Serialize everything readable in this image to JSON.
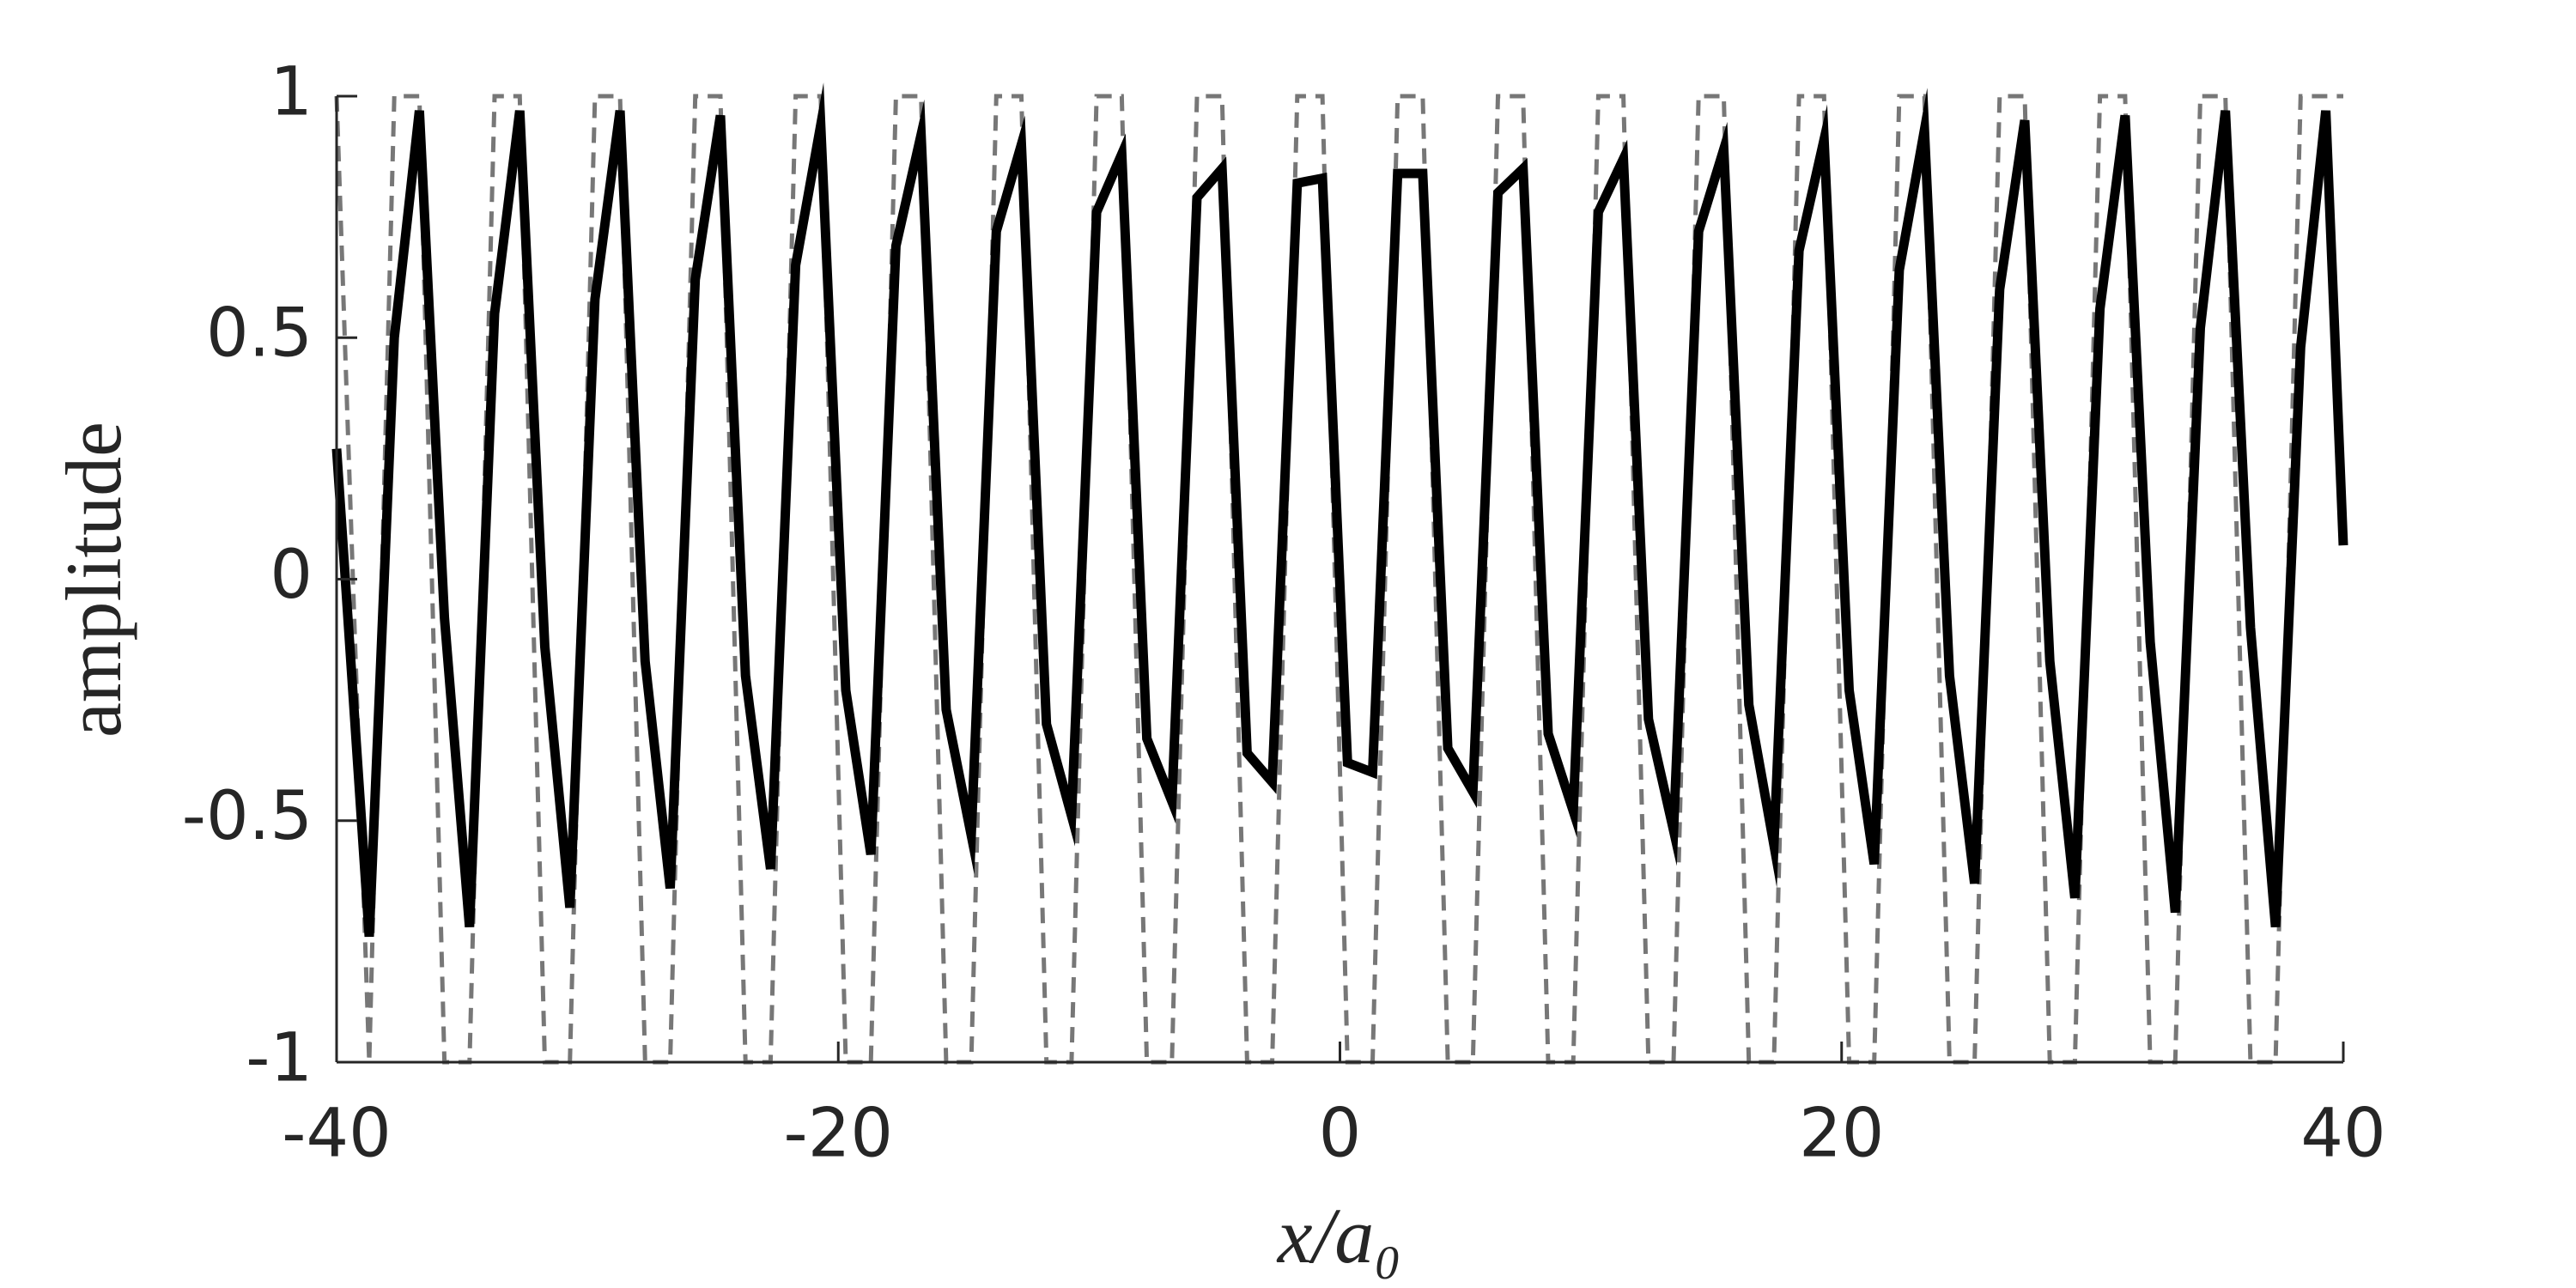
{
  "chart_data": {
    "type": "line",
    "xlabel": "x/a₀",
    "ylabel": "amplitude",
    "x": [
      -40,
      -38.7,
      -37.7,
      -36.7,
      -35.7,
      -34.7,
      -33.7,
      -32.7,
      -31.7,
      -30.7,
      -29.7,
      -28.7,
      -27.7,
      -26.7,
      -25.7,
      -24.7,
      -23.7,
      -22.7,
      -21.7,
      -20.7,
      -19.7,
      -18.7,
      -17.7,
      -16.7,
      -15.7,
      -14.7,
      -13.7,
      -12.7,
      -11.7,
      -10.7,
      -9.7,
      -8.7,
      -7.7,
      -6.7,
      -5.7,
      -4.7,
      -3.7,
      -2.7,
      -1.7,
      -0.7,
      0.3,
      1.3,
      2.3,
      3.3,
      4.3,
      5.3,
      6.3,
      7.3,
      8.3,
      9.3,
      10.3,
      11.3,
      12.3,
      13.3,
      14.3,
      15.3,
      16.3,
      17.3,
      18.3,
      19.3,
      20.3,
      21.3,
      22.3,
      23.3,
      24.3,
      25.3,
      26.3,
      27.3,
      28.3,
      29.3,
      30.3,
      31.3,
      32.3,
      33.3,
      34.3,
      35.3,
      36.3,
      37.3,
      38.3,
      39.3,
      40
    ],
    "series": [
      {
        "color": "#777777",
        "linestyle": "dashed",
        "values": [
          1,
          -1,
          1,
          1,
          -1,
          -1,
          1,
          1,
          -1,
          -1,
          1,
          1,
          -1,
          -1,
          1,
          1,
          -1,
          -1,
          1,
          1,
          -1,
          -1,
          1,
          1,
          -1,
          -1,
          1,
          1,
          -1,
          -1,
          1,
          1,
          -1,
          -1,
          1,
          1,
          -1,
          -1,
          1,
          1,
          -1,
          -1,
          1,
          1,
          -1,
          -1,
          1,
          1,
          -1,
          -1,
          1,
          1,
          -1,
          -1,
          1,
          1,
          -1,
          -1,
          1,
          1,
          -1,
          -1,
          1,
          1,
          -1,
          -1,
          1,
          1,
          -1,
          -1,
          1,
          1,
          -1,
          -1,
          1,
          1,
          -1,
          -1,
          1,
          1,
          1
        ]
      },
      {
        "color": "#000000",
        "linestyle": "solid",
        "values": [
          0.27,
          -0.74,
          0.5,
          0.97,
          -0.08,
          -0.72,
          0.55,
          0.97,
          -0.14,
          -0.68,
          0.58,
          0.97,
          -0.17,
          -0.64,
          0.62,
          0.96,
          -0.2,
          -0.6,
          0.65,
          0.94,
          -0.23,
          -0.57,
          0.69,
          0.92,
          -0.27,
          -0.53,
          0.72,
          0.9,
          -0.3,
          -0.49,
          0.76,
          0.88,
          -0.33,
          -0.46,
          0.79,
          0.85,
          -0.36,
          -0.42,
          0.82,
          0.83,
          -0.38,
          -0.4,
          0.84,
          0.84,
          -0.35,
          -0.44,
          0.8,
          0.85,
          -0.32,
          -0.48,
          0.76,
          0.87,
          -0.29,
          -0.52,
          0.72,
          0.89,
          -0.26,
          -0.55,
          0.68,
          0.91,
          -0.23,
          -0.59,
          0.64,
          0.93,
          -0.2,
          -0.63,
          0.6,
          0.95,
          -0.17,
          -0.66,
          0.56,
          0.96,
          -0.13,
          -0.69,
          0.52,
          0.97,
          -0.1,
          -0.72,
          0.48,
          0.97,
          0.07
        ]
      }
    ],
    "xlim": [
      -40,
      40
    ],
    "xticks": [
      -40,
      -20,
      0,
      20,
      40
    ],
    "ylim": [
      -1,
      1
    ],
    "yticks": [
      -1,
      -0.5,
      0,
      0.5,
      1
    ],
    "grid": false
  }
}
